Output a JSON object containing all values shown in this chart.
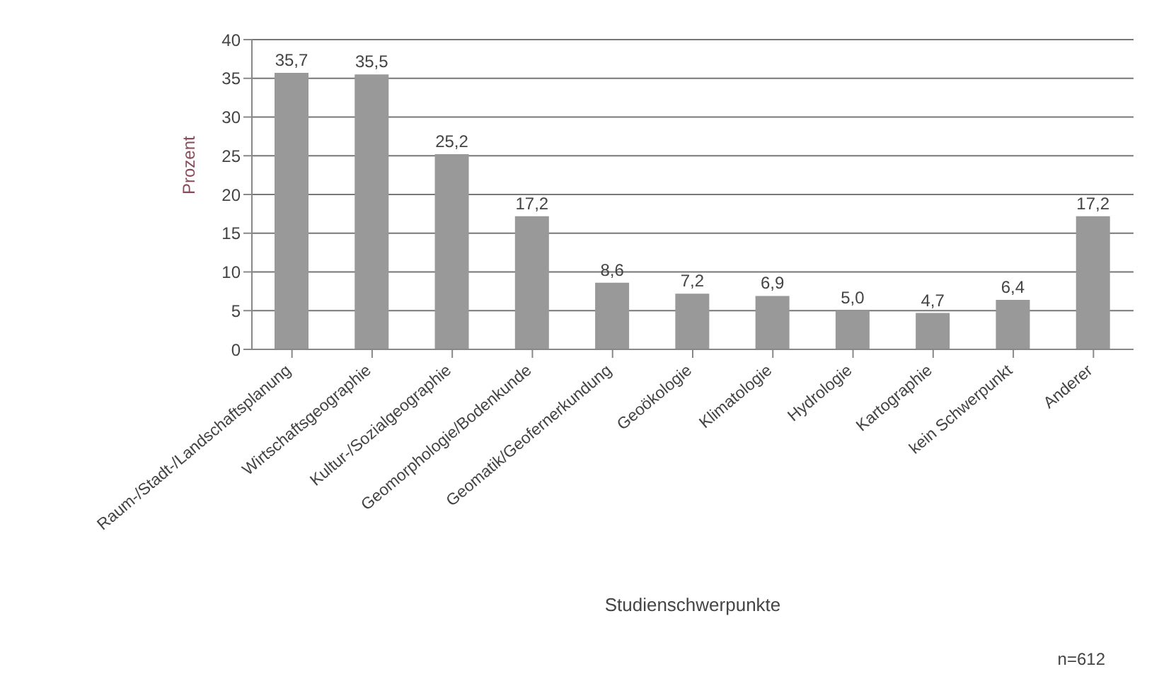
{
  "chart_data": {
    "type": "bar",
    "xlabel": "Studienschwerpunkte",
    "ylabel": "Prozent",
    "categories": [
      "Raum-/Stadt-/Landschaftsplanung",
      "Wirtschaftsgeographie",
      "Kultur-/Sozialgeographie",
      "Geomorphologie/Bodenkunde",
      "Geomatik/Geofernerkundung",
      "Geoökologie",
      "Klimatologie",
      "Hydrologie",
      "Kartographie",
      "kein Schwerpunkt",
      "Anderer"
    ],
    "values": [
      35.7,
      35.5,
      25.2,
      17.2,
      8.6,
      7.2,
      6.9,
      5.0,
      4.7,
      6.4,
      17.2
    ],
    "value_labels": [
      "35,7",
      "35,5",
      "25,2",
      "17,2",
      "8,6",
      "7,2",
      "6,9",
      "5,0",
      "4,7",
      "6,4",
      "17,2"
    ],
    "color": "#999999",
    "ylim": [
      0,
      40
    ],
    "yticks": [
      0,
      5,
      10,
      15,
      20,
      25,
      30,
      35,
      40
    ],
    "grid": "y",
    "annotations": [
      "n=612"
    ]
  }
}
